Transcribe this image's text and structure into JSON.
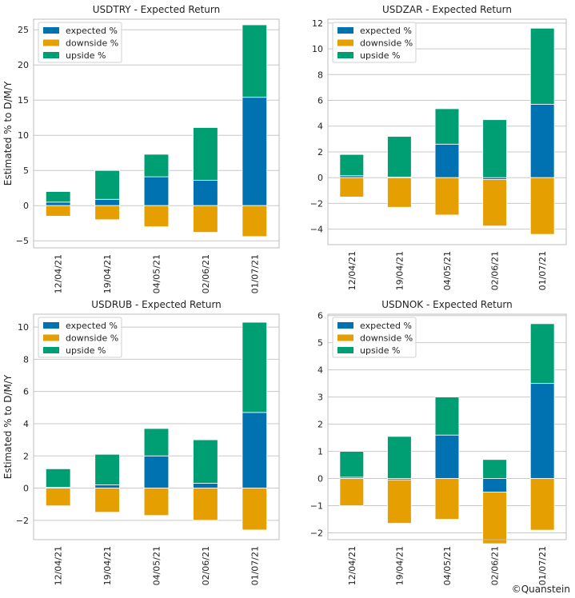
{
  "chart_data": [
    {
      "type": "bar",
      "stacked": true,
      "title": "USDTRY - Expected Return",
      "xlabel": "",
      "ylabel": "Estimated % to D/M/Y",
      "categories": [
        "12/04/21",
        "19/04/21",
        "04/05/21",
        "02/06/21",
        "01/07/21"
      ],
      "series": [
        {
          "name": "expected %",
          "values": [
            0.5,
            0.9,
            4.1,
            3.6,
            15.4
          ]
        },
        {
          "name": "downside %",
          "values": [
            -1.5,
            -2.0,
            -3.0,
            -3.8,
            -4.4
          ]
        },
        {
          "name": "upside %",
          "values": [
            1.5,
            4.1,
            3.2,
            7.5,
            10.3
          ]
        }
      ],
      "ylim": [
        -6,
        26.5
      ],
      "yticks": [
        -5,
        0,
        5,
        10,
        15,
        20,
        25
      ],
      "legend": "top-left",
      "grid": true
    },
    {
      "type": "bar",
      "stacked": true,
      "title": "USDZAR - Expected Return",
      "xlabel": "",
      "ylabel": "",
      "categories": [
        "12/04/21",
        "19/04/21",
        "04/05/21",
        "02/06/21",
        "01/07/21"
      ],
      "series": [
        {
          "name": "expected %",
          "values": [
            0.15,
            0.05,
            2.6,
            -0.15,
            5.7
          ]
        },
        {
          "name": "downside %",
          "values": [
            -1.5,
            -2.3,
            -2.9,
            -3.6,
            -4.4
          ]
        },
        {
          "name": "upside %",
          "values": [
            1.65,
            3.15,
            2.75,
            4.5,
            5.9
          ]
        }
      ],
      "ylim": [
        -5.2,
        12.3
      ],
      "yticks": [
        -4,
        -2,
        0,
        2,
        4,
        6,
        8,
        10,
        12
      ],
      "legend": "top-left",
      "grid": true
    },
    {
      "type": "bar",
      "stacked": true,
      "title": "USDRUB - Expected Return",
      "xlabel": "",
      "ylabel": "Estimated % to D/M/Y",
      "categories": [
        "12/04/21",
        "19/04/21",
        "04/05/21",
        "02/06/21",
        "01/07/21"
      ],
      "series": [
        {
          "name": "expected %",
          "values": [
            0.05,
            0.2,
            2.0,
            0.3,
            4.7
          ]
        },
        {
          "name": "downside %",
          "values": [
            -1.1,
            -1.5,
            -1.7,
            -2.0,
            -2.6
          ]
        },
        {
          "name": "upside %",
          "values": [
            1.15,
            1.9,
            1.7,
            2.7,
            5.6
          ]
        }
      ],
      "ylim": [
        -3.2,
        10.8
      ],
      "yticks": [
        -2,
        0,
        2,
        4,
        6,
        8,
        10
      ],
      "legend": "top-left",
      "grid": true
    },
    {
      "type": "bar",
      "stacked": true,
      "title": "USDNOK - Expected Return",
      "xlabel": "",
      "ylabel": "",
      "categories": [
        "12/04/21",
        "19/04/21",
        "04/05/21",
        "02/06/21",
        "01/07/21"
      ],
      "series": [
        {
          "name": "expected %",
          "values": [
            0.05,
            -0.05,
            1.6,
            -0.5,
            3.5
          ]
        },
        {
          "name": "downside %",
          "values": [
            -1.0,
            -1.6,
            -1.5,
            -1.9,
            -1.9
          ]
        },
        {
          "name": "upside %",
          "values": [
            0.95,
            1.55,
            1.4,
            0.7,
            2.2
          ]
        }
      ],
      "ylim": [
        -2.25,
        6.05
      ],
      "yticks": [
        -2,
        -1,
        0,
        1,
        2,
        3,
        4,
        5,
        6
      ],
      "legend": "top-left",
      "grid": true
    }
  ],
  "colors": {
    "expected": "#0072b2",
    "downside": "#e69f00",
    "upside": "#009e73",
    "grid": "#c8c8c8",
    "frame": "#bcbcbc",
    "text": "#222222"
  },
  "credit": "©Quanstein"
}
